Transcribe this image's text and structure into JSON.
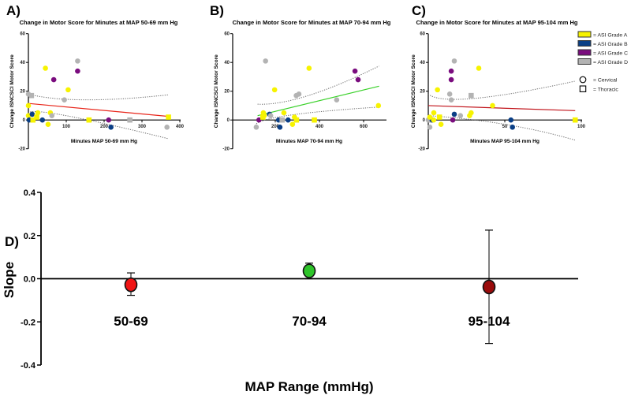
{
  "colors": {
    "gradeA": "#f7f300",
    "gradeB": "#0a3f86",
    "gradeC": "#7a0c7e",
    "gradeD": "#b3b3b3",
    "fitA": "#e8261b",
    "fitB": "#3ad12a",
    "fitC": "#c1141b"
  },
  "legend": {
    "grades": [
      {
        "key": "gradeA",
        "label": "= ASI Grade A"
      },
      {
        "key": "gradeB",
        "label": "= ASI Grade B"
      },
      {
        "key": "gradeC",
        "label": "= ASI Grade C"
      },
      {
        "key": "gradeD",
        "label": "= ASI Grade D"
      }
    ],
    "shapes": [
      {
        "shape": "circle",
        "label": "= Cervical"
      },
      {
        "shape": "square",
        "label": "= Thoracic"
      }
    ]
  },
  "chart_data": [
    {
      "type": "scatter",
      "panel": "A)",
      "title": "Change in Motor Score for Minutes at MAP 50-69 mm Hg",
      "xlabel": "Minutes MAP 50-69 mm Hg",
      "ylabel": "Change ISNCSCI Motor Score",
      "xlim": [
        0,
        400
      ],
      "ylim": [
        -20,
        60
      ],
      "xticks": [
        "100",
        "200",
        "300",
        "400"
      ],
      "xtickvals": [
        100,
        200,
        300,
        400
      ],
      "yticks": [
        "60",
        "40",
        "20",
        "0",
        "-20"
      ],
      "ytickvals": [
        60,
        40,
        20,
        0,
        -20
      ],
      "points": [
        [
          0,
          18,
          "gradeD",
          "circle"
        ],
        [
          8,
          17,
          "gradeD",
          "square"
        ],
        [
          95,
          14,
          "gradeD",
          "circle"
        ],
        [
          130,
          41,
          "gradeD",
          "circle"
        ],
        [
          130,
          34,
          "gradeC",
          "circle"
        ],
        [
          67,
          28,
          "gradeC",
          "circle"
        ],
        [
          45,
          36,
          "gradeA",
          "circle"
        ],
        [
          105,
          21,
          "gradeA",
          "circle"
        ],
        [
          0,
          10,
          "gradeA",
          "circle"
        ],
        [
          0,
          3,
          "gradeA",
          "circle"
        ],
        [
          10,
          4,
          "gradeB",
          "circle"
        ],
        [
          2,
          0,
          "gradeB",
          "circle"
        ],
        [
          12,
          0,
          "gradeA",
          "square"
        ],
        [
          22,
          2,
          "gradeA",
          "square"
        ],
        [
          25,
          5,
          "gradeA",
          "circle"
        ],
        [
          37,
          0,
          "gradeB",
          "circle"
        ],
        [
          52,
          -3,
          "gradeA",
          "circle"
        ],
        [
          58,
          5,
          "gradeA",
          "circle"
        ],
        [
          62,
          3,
          "gradeD",
          "circle"
        ],
        [
          160,
          0,
          "gradeA",
          "square"
        ],
        [
          212,
          0,
          "gradeC",
          "circle"
        ],
        [
          218,
          -5,
          "gradeB",
          "circle"
        ],
        [
          268,
          0,
          "gradeD",
          "square"
        ],
        [
          366,
          -5,
          "gradeD",
          "circle"
        ],
        [
          370,
          2,
          "gradeA",
          "square"
        ]
      ],
      "fit": {
        "color": "fitA",
        "line": [
          [
            0,
            11.5
          ],
          [
            370,
            2.5
          ]
        ],
        "ci_upper": [
          [
            0,
            18
          ],
          [
            150,
            14
          ],
          [
            370,
            17.5
          ]
        ],
        "ci_lower": [
          [
            0,
            5
          ],
          [
            100,
            3
          ],
          [
            370,
            -13
          ]
        ]
      }
    },
    {
      "type": "scatter",
      "panel": "B)",
      "title": "Change in Motor Score for Minutes at MAP 70-94 mm Hg",
      "xlabel": "Minutes MAP 70-94 mm Hg",
      "ylabel": "Change ISNCSCI Motor Score",
      "xlim": [
        0,
        700
      ],
      "ylim": [
        -20,
        60
      ],
      "xticks": [
        "200",
        "400",
        "600"
      ],
      "xtickvals": [
        200,
        400,
        600
      ],
      "yticks": [
        "60",
        "40",
        "20",
        "0",
        "-20"
      ],
      "ytickvals": [
        60,
        40,
        20,
        0,
        -20
      ],
      "points": [
        [
          156,
          41,
          "gradeD",
          "circle"
        ],
        [
          126,
          0,
          "gradeC",
          "circle"
        ],
        [
          114,
          -5,
          "gradeD",
          "circle"
        ],
        [
          146,
          5,
          "gradeA",
          "circle"
        ],
        [
          150,
          3,
          "gradeA",
          "circle"
        ],
        [
          144,
          2,
          "gradeA",
          "square"
        ],
        [
          174,
          4,
          "gradeB",
          "circle"
        ],
        [
          179,
          3,
          "gradeD",
          "circle"
        ],
        [
          197,
          21,
          "gradeA",
          "circle"
        ],
        [
          215,
          0,
          "gradeB",
          "circle"
        ],
        [
          221,
          -5,
          "gradeB",
          "circle"
        ],
        [
          231,
          0,
          "gradeD",
          "square"
        ],
        [
          258,
          0,
          "gradeB",
          "circle"
        ],
        [
          239,
          5,
          "gradeA",
          "circle"
        ],
        [
          278,
          -3,
          "gradeA",
          "circle"
        ],
        [
          287,
          2,
          "gradeA",
          "circle"
        ],
        [
          296,
          0,
          "gradeA",
          "square"
        ],
        [
          295,
          17,
          "gradeD",
          "circle"
        ],
        [
          307,
          18,
          "gradeD",
          "circle"
        ],
        [
          353,
          36,
          "gradeA",
          "circle"
        ],
        [
          377,
          0,
          "gradeA",
          "square"
        ],
        [
          478,
          14,
          "gradeD",
          "circle"
        ],
        [
          561,
          34,
          "gradeC",
          "circle"
        ],
        [
          575,
          28,
          "gradeC",
          "circle"
        ],
        [
          667,
          10,
          "gradeA",
          "circle"
        ]
      ],
      "fit": {
        "color": "fitB",
        "line": [
          [
            120,
            3
          ],
          [
            670,
            23.5
          ]
        ],
        "ci_upper": [
          [
            120,
            11
          ],
          [
            350,
            17
          ],
          [
            670,
            37.5
          ]
        ],
        "ci_lower": [
          [
            110,
            -4
          ],
          [
            250,
            3
          ],
          [
            670,
            9
          ]
        ]
      }
    },
    {
      "type": "scatter",
      "panel": "C)",
      "title": "Change in Motor Score for Minutes at MAP 95-104 mm Hg",
      "xlabel": "Minutes MAP 95-104 mm Hg",
      "ylabel": "Change ISNCSCI Motor Score",
      "xlim": [
        0,
        100
      ],
      "ylim": [
        -20,
        60
      ],
      "xticks": [
        "50",
        "100"
      ],
      "xtickvals": [
        50,
        100
      ],
      "yticks": [
        "60",
        "40",
        "20",
        "0",
        "-20"
      ],
      "ytickvals": [
        60,
        40,
        20,
        0,
        -20
      ],
      "points": [
        [
          0,
          0,
          "gradeD",
          "circle"
        ],
        [
          1,
          0,
          "gradeD",
          "square"
        ],
        [
          1,
          -5,
          "gradeD",
          "circle"
        ],
        [
          2.5,
          0,
          "gradeB",
          "circle"
        ],
        [
          1,
          2,
          "gradeA",
          "circle"
        ],
        [
          3.6,
          5,
          "gradeA",
          "circle"
        ],
        [
          3.5,
          0,
          "gradeA",
          "circle"
        ],
        [
          6,
          21,
          "gradeA",
          "circle"
        ],
        [
          7.3,
          2,
          "gradeA",
          "square"
        ],
        [
          8.3,
          -3,
          "gradeA",
          "circle"
        ],
        [
          14,
          18,
          "gradeD",
          "circle"
        ],
        [
          15,
          14,
          "gradeD",
          "circle"
        ],
        [
          15,
          34,
          "gradeC",
          "circle"
        ],
        [
          15,
          28,
          "gradeC",
          "circle"
        ],
        [
          17,
          41,
          "gradeD",
          "circle"
        ],
        [
          17,
          4,
          "gradeB",
          "circle"
        ],
        [
          16,
          0,
          "gradeC",
          "circle"
        ],
        [
          21,
          3,
          "gradeD",
          "circle"
        ],
        [
          28,
          17,
          "gradeD",
          "square"
        ],
        [
          27,
          3,
          "gradeA",
          "circle"
        ],
        [
          28,
          5,
          "gradeA",
          "circle"
        ],
        [
          33,
          36,
          "gradeA",
          "circle"
        ],
        [
          42,
          10,
          "gradeA",
          "circle"
        ],
        [
          54,
          0,
          "gradeB",
          "circle"
        ],
        [
          55,
          -5,
          "gradeB",
          "circle"
        ],
        [
          96,
          0,
          "gradeA",
          "square"
        ]
      ],
      "fit": {
        "color": "fitC",
        "line": [
          [
            0,
            10
          ],
          [
            96,
            6.5
          ]
        ],
        "ci_upper": [
          [
            0,
            18
          ],
          [
            30,
            15
          ],
          [
            96,
            27
          ]
        ],
        "ci_lower": [
          [
            0,
            3
          ],
          [
            50,
            -3
          ],
          [
            96,
            -14
          ]
        ]
      }
    },
    {
      "type": "scatter",
      "panel": "D)",
      "title": "",
      "xlabel": "MAP Range (mmHg)",
      "ylabel": "Slope",
      "ylim": [
        -0.4,
        0.4
      ],
      "yticks": [
        "0.4",
        "0.2",
        "0.0",
        "-0.2",
        "-0.4"
      ],
      "ytickvals": [
        0.4,
        0.2,
        0,
        -0.2,
        -0.4
      ],
      "categories": [
        "50-69",
        "70-94",
        "95-104"
      ],
      "values": [
        -0.028,
        0.036,
        -0.038
      ],
      "err_low": [
        -0.077,
        0.0,
        -0.3
      ],
      "err_high": [
        0.027,
        0.072,
        0.225
      ],
      "point_colors": [
        "#f01414",
        "#2ec42a",
        "#9a0b0b"
      ]
    }
  ]
}
